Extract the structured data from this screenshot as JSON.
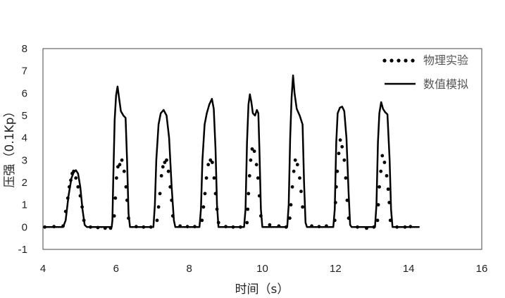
{
  "chart_data": {
    "type": "line",
    "title": "",
    "xlabel": "时间（s）",
    "ylabel": "压强（0.1Kp）",
    "xlim": [
      4,
      16
    ],
    "ylim": [
      -1,
      8
    ],
    "xticks": [
      4,
      6,
      8,
      10,
      12,
      14,
      16
    ],
    "yticks": [
      -1,
      0,
      1,
      2,
      3,
      4,
      5,
      6,
      7,
      8
    ],
    "grid": false,
    "legend_position": "top-right",
    "series": [
      {
        "name": "物理实验",
        "style": "dotted",
        "color": "#000000",
        "points": [
          [
            4.05,
            0.0
          ],
          [
            4.3,
            0.02
          ],
          [
            4.55,
            0.05
          ],
          [
            4.62,
            0.7
          ],
          [
            4.68,
            1.3
          ],
          [
            4.72,
            1.8
          ],
          [
            4.76,
            2.1
          ],
          [
            4.8,
            2.4
          ],
          [
            4.84,
            2.5
          ],
          [
            4.9,
            2.2
          ],
          [
            4.96,
            1.8
          ],
          [
            5.02,
            1.4
          ],
          [
            5.07,
            0.9
          ],
          [
            5.12,
            0.3
          ],
          [
            5.3,
            0.0
          ],
          [
            5.5,
            -0.02
          ],
          [
            5.7,
            -0.05
          ],
          [
            5.85,
            -0.05
          ],
          [
            5.95,
            0.5
          ],
          [
            5.98,
            1.3
          ],
          [
            6.01,
            2.2
          ],
          [
            6.05,
            2.7
          ],
          [
            6.1,
            2.8
          ],
          [
            6.16,
            3.0
          ],
          [
            6.22,
            2.5
          ],
          [
            6.27,
            1.8
          ],
          [
            6.3,
            1.2
          ],
          [
            6.34,
            0.4
          ],
          [
            6.55,
            0.02
          ],
          [
            6.75,
            0.0
          ],
          [
            6.95,
            0.0
          ],
          [
            7.12,
            0.3
          ],
          [
            7.16,
            0.9
          ],
          [
            7.2,
            1.5
          ],
          [
            7.24,
            2.3
          ],
          [
            7.28,
            2.7
          ],
          [
            7.33,
            2.9
          ],
          [
            7.38,
            3.0
          ],
          [
            7.43,
            2.5
          ],
          [
            7.48,
            1.8
          ],
          [
            7.52,
            1.2
          ],
          [
            7.55,
            0.5
          ],
          [
            7.75,
            0.05
          ],
          [
            7.95,
            0.02
          ],
          [
            8.15,
            0.02
          ],
          [
            8.35,
            0.3
          ],
          [
            8.39,
            0.9
          ],
          [
            8.43,
            1.5
          ],
          [
            8.47,
            2.2
          ],
          [
            8.52,
            2.8
          ],
          [
            8.58,
            3.0
          ],
          [
            8.63,
            2.9
          ],
          [
            8.68,
            2.2
          ],
          [
            8.72,
            1.5
          ],
          [
            8.76,
            0.8
          ],
          [
            8.8,
            0.2
          ],
          [
            9.0,
            0.02
          ],
          [
            9.2,
            0.0
          ],
          [
            9.4,
            0.0
          ],
          [
            9.58,
            0.2
          ],
          [
            9.6,
            0.8
          ],
          [
            9.62,
            1.5
          ],
          [
            9.65,
            2.3
          ],
          [
            9.68,
            3.0
          ],
          [
            9.72,
            3.5
          ],
          [
            9.78,
            3.4
          ],
          [
            9.84,
            2.8
          ],
          [
            9.88,
            2.2
          ],
          [
            9.92,
            1.4
          ],
          [
            9.96,
            0.5
          ],
          [
            10.2,
            0.1
          ],
          [
            10.45,
            0.05
          ],
          [
            10.65,
            0.0
          ],
          [
            10.75,
            0.4
          ],
          [
            10.78,
            1.0
          ],
          [
            10.82,
            1.8
          ],
          [
            10.86,
            2.5
          ],
          [
            10.9,
            3.0
          ],
          [
            10.96,
            2.8
          ],
          [
            11.02,
            2.2
          ],
          [
            11.06,
            1.6
          ],
          [
            11.1,
            0.9
          ],
          [
            11.35,
            0.05
          ],
          [
            11.55,
            0.02
          ],
          [
            11.75,
            0.05
          ],
          [
            11.98,
            0.3
          ],
          [
            12.0,
            1.1
          ],
          [
            12.02,
            1.8
          ],
          [
            12.05,
            2.5
          ],
          [
            12.09,
            3.3
          ],
          [
            12.13,
            3.9
          ],
          [
            12.18,
            3.6
          ],
          [
            12.24,
            3.0
          ],
          [
            12.28,
            2.2
          ],
          [
            12.32,
            1.2
          ],
          [
            12.36,
            0.4
          ],
          [
            12.6,
            0.0
          ],
          [
            12.85,
            -0.05
          ],
          [
            13.05,
            0.0
          ],
          [
            13.15,
            0.3
          ],
          [
            13.17,
            1.0
          ],
          [
            13.2,
            1.8
          ],
          [
            13.24,
            2.5
          ],
          [
            13.28,
            3.2
          ],
          [
            13.34,
            2.9
          ],
          [
            13.4,
            2.3
          ],
          [
            13.44,
            1.7
          ],
          [
            13.47,
            1.1
          ],
          [
            13.5,
            0.3
          ],
          [
            13.68,
            0.0
          ],
          [
            13.9,
            0.0
          ],
          [
            14.05,
            0.02
          ]
        ]
      },
      {
        "name": "数值模拟",
        "style": "solid",
        "color": "#000000",
        "points": [
          [
            4.05,
            0.0
          ],
          [
            4.55,
            0.0
          ],
          [
            4.62,
            0.3
          ],
          [
            4.7,
            1.4
          ],
          [
            4.78,
            2.2
          ],
          [
            4.84,
            2.45
          ],
          [
            4.9,
            2.55
          ],
          [
            4.96,
            2.4
          ],
          [
            5.02,
            1.8
          ],
          [
            5.08,
            0.8
          ],
          [
            5.14,
            0.1
          ],
          [
            5.2,
            0.0
          ],
          [
            5.88,
            0.0
          ],
          [
            5.9,
            0.3
          ],
          [
            5.92,
            2.0
          ],
          [
            5.96,
            4.8
          ],
          [
            6.0,
            5.9
          ],
          [
            6.04,
            6.3
          ],
          [
            6.08,
            5.8
          ],
          [
            6.13,
            5.2
          ],
          [
            6.2,
            5.0
          ],
          [
            6.26,
            4.9
          ],
          [
            6.3,
            3.0
          ],
          [
            6.34,
            0.6
          ],
          [
            6.38,
            0.0
          ],
          [
            7.02,
            0.0
          ],
          [
            7.06,
            1.0
          ],
          [
            7.1,
            3.0
          ],
          [
            7.16,
            4.6
          ],
          [
            7.22,
            5.1
          ],
          [
            7.3,
            5.25
          ],
          [
            7.38,
            5.0
          ],
          [
            7.45,
            4.0
          ],
          [
            7.52,
            1.8
          ],
          [
            7.58,
            0.3
          ],
          [
            7.62,
            0.0
          ],
          [
            8.28,
            0.0
          ],
          [
            8.32,
            0.8
          ],
          [
            8.36,
            3.0
          ],
          [
            8.42,
            4.6
          ],
          [
            8.48,
            5.1
          ],
          [
            8.55,
            5.5
          ],
          [
            8.62,
            5.75
          ],
          [
            8.67,
            5.3
          ],
          [
            8.72,
            3.5
          ],
          [
            8.76,
            1.0
          ],
          [
            8.8,
            0.0
          ],
          [
            9.5,
            0.0
          ],
          [
            9.54,
            0.8
          ],
          [
            9.58,
            3.8
          ],
          [
            9.62,
            5.5
          ],
          [
            9.66,
            5.95
          ],
          [
            9.7,
            5.6
          ],
          [
            9.74,
            5.1
          ],
          [
            9.8,
            5.0
          ],
          [
            9.85,
            5.25
          ],
          [
            9.89,
            5.1
          ],
          [
            9.92,
            3.5
          ],
          [
            9.96,
            0.8
          ],
          [
            10.0,
            0.0
          ],
          [
            10.68,
            0.0
          ],
          [
            10.72,
            1.0
          ],
          [
            10.76,
            4.0
          ],
          [
            10.8,
            5.8
          ],
          [
            10.84,
            6.8
          ],
          [
            10.88,
            6.0
          ],
          [
            10.94,
            5.3
          ],
          [
            11.02,
            5.0
          ],
          [
            11.1,
            4.6
          ],
          [
            11.14,
            2.0
          ],
          [
            11.18,
            0.2
          ],
          [
            11.22,
            0.0
          ],
          [
            11.94,
            0.0
          ],
          [
            11.98,
            0.8
          ],
          [
            12.02,
            3.8
          ],
          [
            12.06,
            5.1
          ],
          [
            12.12,
            5.35
          ],
          [
            12.18,
            5.4
          ],
          [
            12.24,
            5.2
          ],
          [
            12.3,
            4.0
          ],
          [
            12.36,
            1.5
          ],
          [
            12.4,
            0.1
          ],
          [
            12.44,
            0.0
          ],
          [
            13.08,
            0.0
          ],
          [
            13.12,
            1.0
          ],
          [
            13.16,
            3.8
          ],
          [
            13.2,
            5.1
          ],
          [
            13.25,
            5.6
          ],
          [
            13.3,
            5.3
          ],
          [
            13.36,
            5.15
          ],
          [
            13.42,
            5.05
          ],
          [
            13.48,
            3.0
          ],
          [
            13.52,
            0.8
          ],
          [
            13.56,
            0.0
          ],
          [
            14.3,
            0.0
          ]
        ]
      }
    ]
  }
}
